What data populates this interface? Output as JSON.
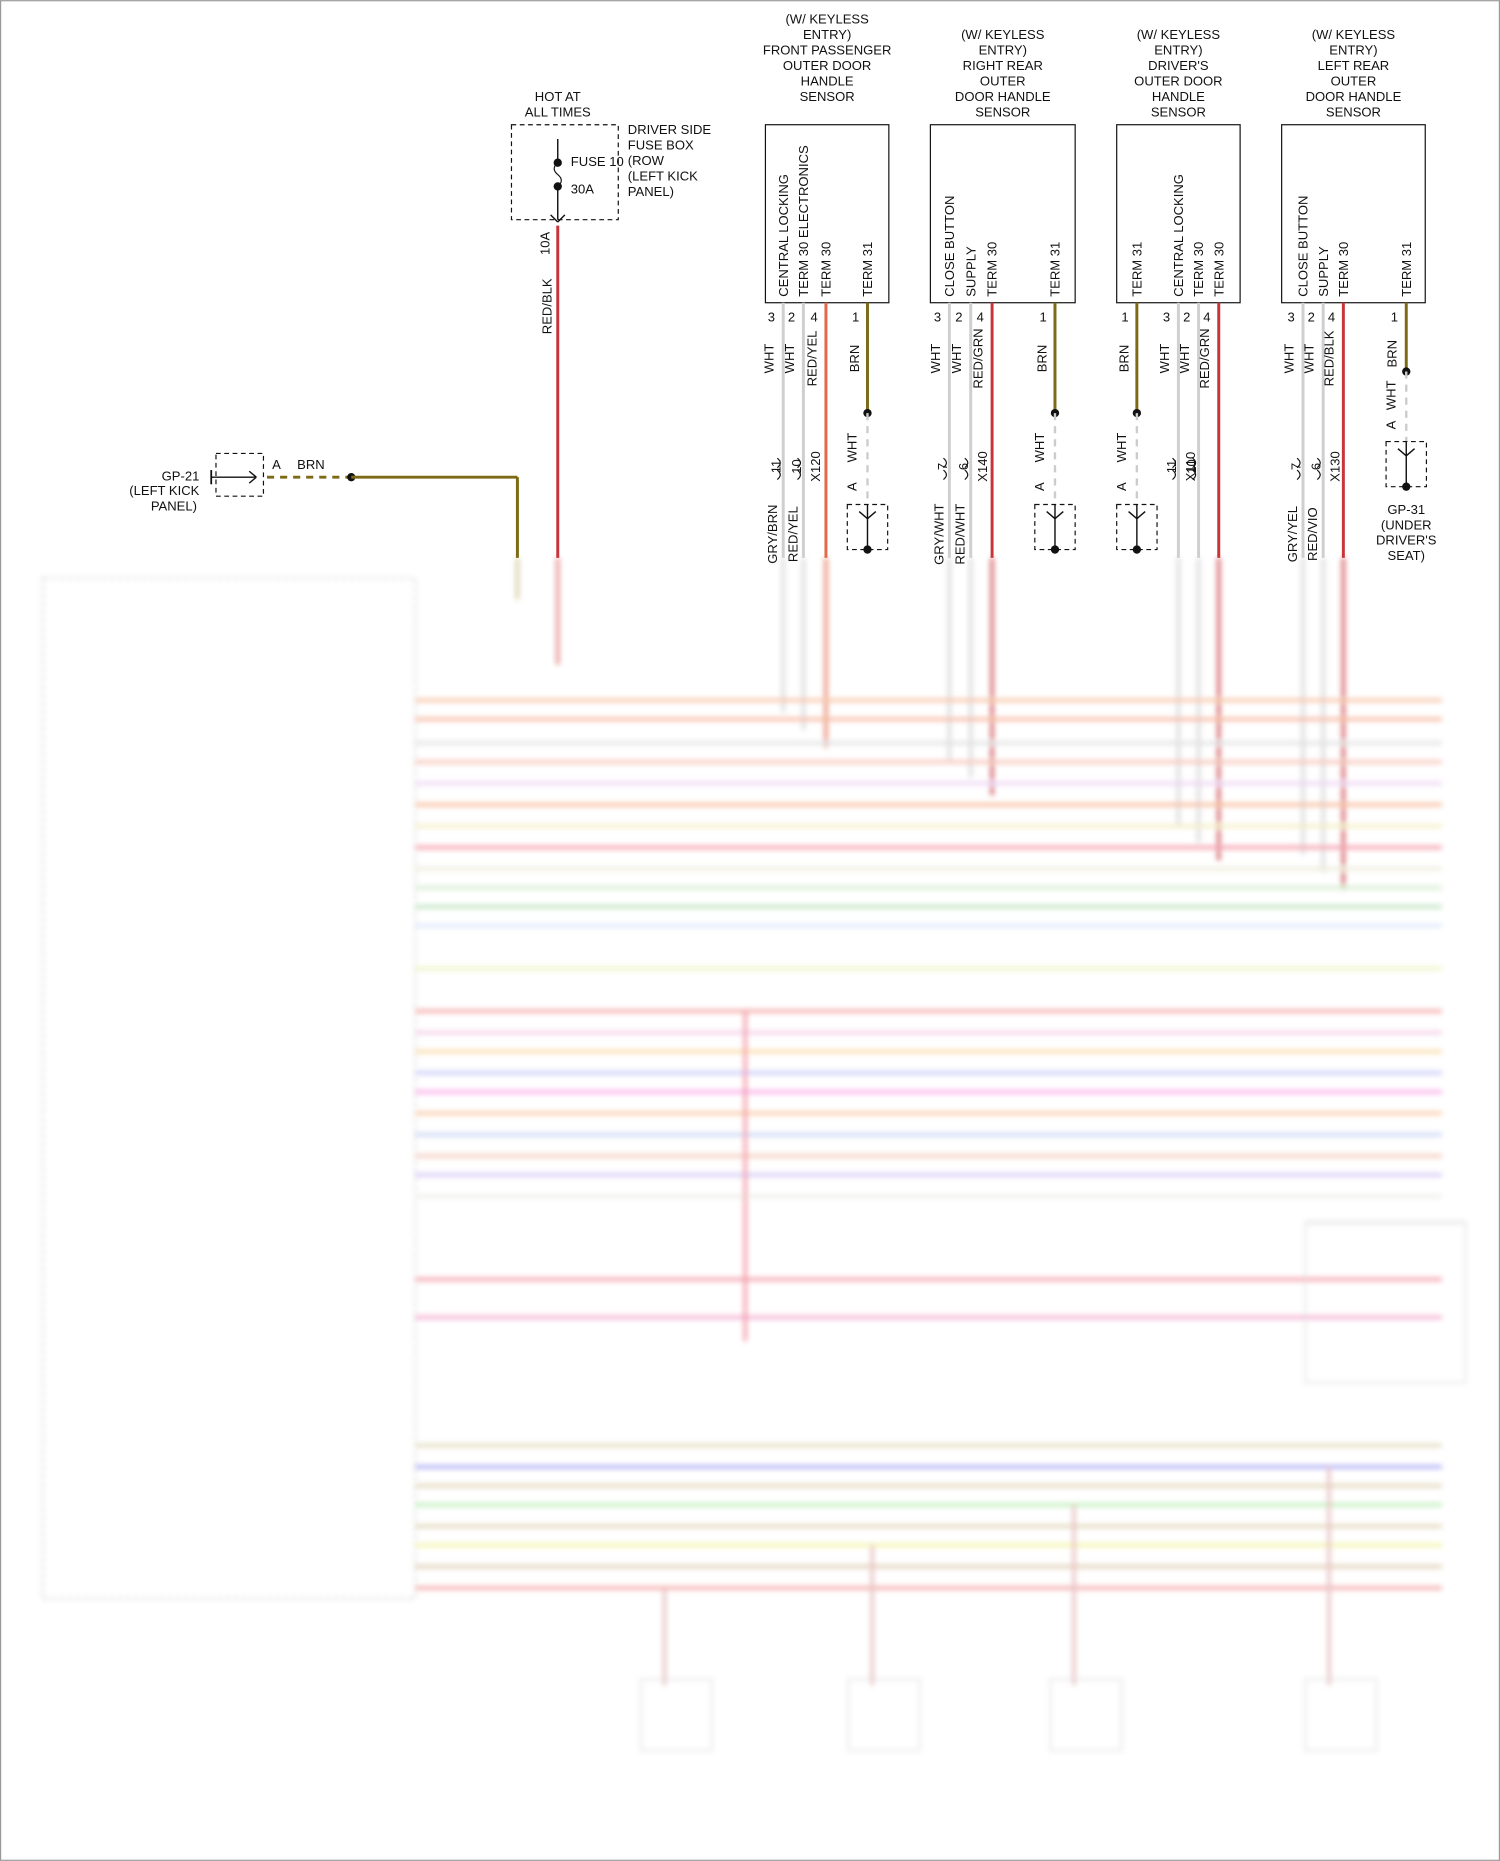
{
  "fuse": {
    "header": [
      "HOT AT",
      "ALL TIMES"
    ],
    "box_label": [
      "DRIVER SIDE",
      "FUSE BOX",
      "(ROW",
      "(LEFT KICK",
      "PANEL)"
    ],
    "fuse": "FUSE 10",
    "rating": "30A",
    "wire_rating": "10A",
    "wire": "RED/BLK"
  },
  "ground_left": {
    "name": "GP-21",
    "location": [
      "(LEFT KICK",
      "PANEL)"
    ],
    "pin": "A",
    "wire": "BRN"
  },
  "sensors": [
    {
      "title": [
        "(W/ KEYLESS",
        "ENTRY)",
        "FRONT PASSENGER",
        "OUTER DOOR",
        "HANDLE",
        "SENSOR"
      ],
      "pins": [
        {
          "num": "3",
          "name": "CENTRAL LOCKING",
          "wire": "WHT"
        },
        {
          "num": "2",
          "name": "TERM 30 ELECTRONICS",
          "wire": "WHT"
        },
        {
          "num": "4",
          "name": "TERM 30",
          "wire": "RED/YEL"
        },
        {
          "num": "1",
          "name": "TERM 31",
          "wire": "BRN"
        }
      ],
      "connector": "X120",
      "connector_pins": [
        "11",
        "10"
      ],
      "lower_wires": [
        "GRY/BRN",
        "RED/YEL"
      ],
      "ground": {
        "wire": "WHT",
        "pin": "A"
      }
    },
    {
      "title": [
        "(W/ KEYLESS",
        "ENTRY)",
        "RIGHT REAR",
        "OUTER",
        "DOOR HANDLE",
        "SENSOR"
      ],
      "pins": [
        {
          "num": "3",
          "name": "CLOSE BUTTON",
          "wire": "WHT"
        },
        {
          "num": "2",
          "name": "SUPPLY",
          "wire": "WHT"
        },
        {
          "num": "4",
          "name": "TERM 30",
          "wire": "RED/GRN"
        },
        {
          "num": "1",
          "name": "TERM 31",
          "wire": "BRN"
        }
      ],
      "connector": "X140",
      "connector_pins": [
        "7",
        "6"
      ],
      "lower_wires": [
        "GRY/WHT",
        "RED/WHT"
      ],
      "ground": {
        "wire": "WHT",
        "pin": "A"
      }
    },
    {
      "title": [
        "(W/ KEYLESS",
        "ENTRY)",
        "DRIVER'S",
        "OUTER DOOR",
        "HANDLE",
        "SENSOR"
      ],
      "pins": [
        {
          "num": "1",
          "name": "TERM 31",
          "wire": "BRN"
        },
        {
          "num": "3",
          "name": "CENTRAL LOCKING",
          "wire": "WHT"
        },
        {
          "num": "2",
          "name": "TERM 30",
          "wire": "WHT"
        },
        {
          "num": "4",
          "name": "TERM 30",
          "wire": "RED/GRN"
        }
      ],
      "connector": "X110",
      "connector_pins": [
        "11",
        "10"
      ],
      "ground": {
        "wire": "WHT",
        "pin": "A"
      }
    },
    {
      "title": [
        "(W/ KEYLESS",
        "ENTRY)",
        "LEFT REAR",
        "OUTER",
        "DOOR HANDLE",
        "SENSOR"
      ],
      "pins": [
        {
          "num": "3",
          "name": "CLOSE BUTTON",
          "wire": "WHT"
        },
        {
          "num": "2",
          "name": "SUPPLY",
          "wire": "WHT"
        },
        {
          "num": "4",
          "name": "TERM 30",
          "wire": "RED/BLK"
        },
        {
          "num": "1",
          "name": "TERM 31",
          "wire": "BRN"
        }
      ],
      "connector": "X130",
      "connector_pins": [
        "7",
        "6"
      ],
      "lower_wires": [
        "GRY/YEL",
        "RED/VIO"
      ],
      "ground": {
        "wire": "WHT",
        "pin": "A",
        "name": "GP-31",
        "location": [
          "(UNDER",
          "DRIVER'S",
          "SEAT)"
        ]
      }
    }
  ]
}
